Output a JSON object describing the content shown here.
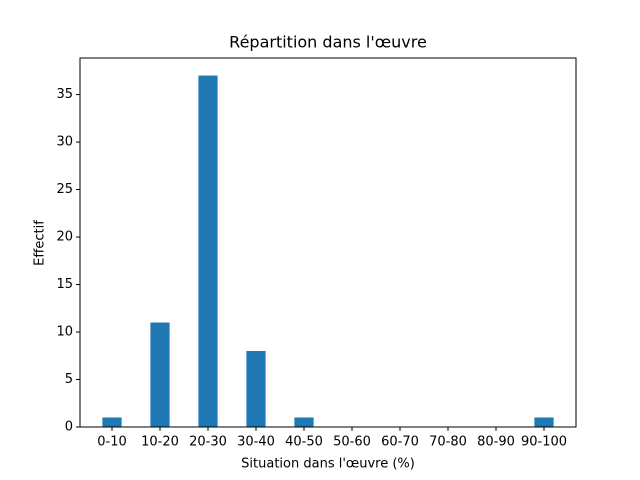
{
  "chart_data": {
    "type": "bar",
    "title": "Répartition dans l'œuvre",
    "xlabel": "Situation dans l'œuvre (%)",
    "ylabel": "Effectif",
    "categories": [
      "0-10",
      "10-20",
      "20-30",
      "30-40",
      "40-50",
      "50-60",
      "60-70",
      "70-80",
      "80-90",
      "90-100"
    ],
    "values": [
      1,
      11,
      37,
      8,
      1,
      0,
      0,
      0,
      0,
      1
    ],
    "color": "#1f77b4",
    "ylim": [
      0,
      38.85
    ],
    "yticks": [
      0,
      5,
      10,
      15,
      20,
      25,
      30,
      35
    ],
    "grid": false
  }
}
